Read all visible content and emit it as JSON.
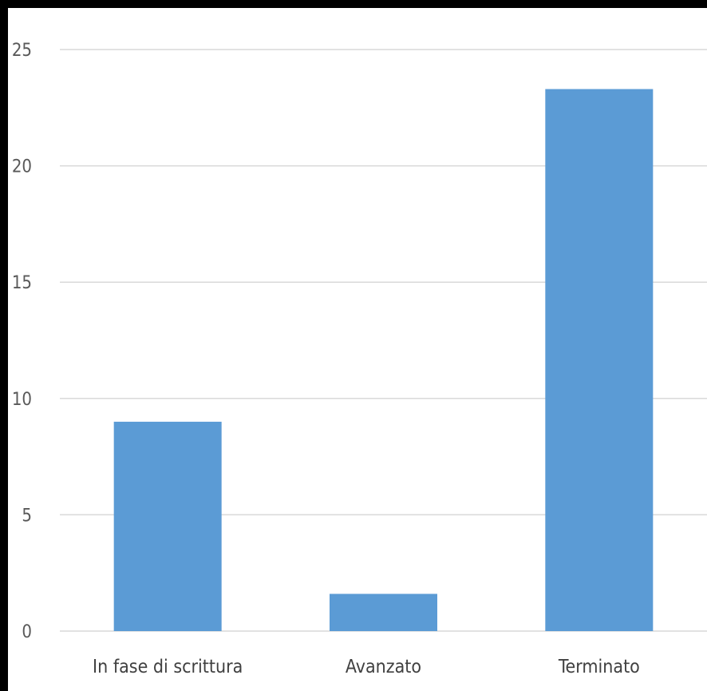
{
  "chart_data": {
    "type": "bar",
    "title": "",
    "xlabel": "",
    "ylabel": "",
    "categories": [
      "In fase di scrittura",
      "Avanzato",
      "Terminato"
    ],
    "values": [
      9,
      1.6,
      23.3
    ],
    "ylim": [
      0,
      25
    ],
    "yticks": [
      0,
      5,
      10,
      15,
      20,
      25
    ],
    "ytick_labels": [
      "0",
      "5",
      "10",
      "15",
      "20",
      "25"
    ],
    "grid": true,
    "legend": "none",
    "bar_color": "#5b9bd5",
    "grid_color": "#d9d9d9"
  }
}
